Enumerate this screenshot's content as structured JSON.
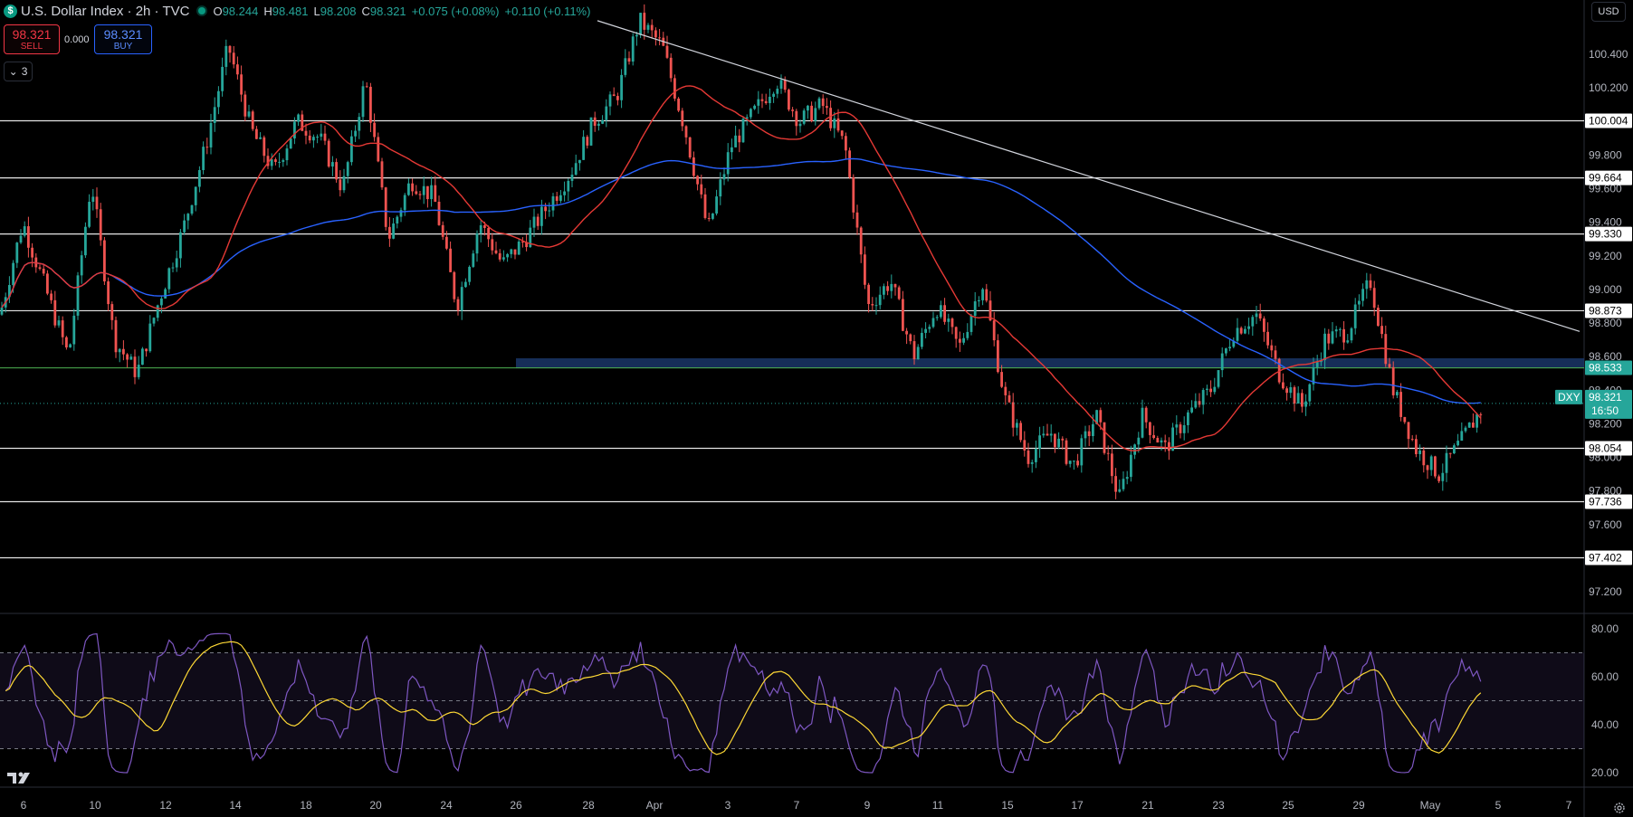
{
  "header": {
    "logo_glyph": "$",
    "title": "U.S. Dollar Index · 2h · TVC",
    "open_label": "O",
    "open": "98.244",
    "high_label": "H",
    "high": "98.481",
    "low_label": "L",
    "low": "98.208",
    "close_label": "C",
    "close": "98.321",
    "change": "+0.075 (+0.08%)",
    "change2": "+0.110 (+0.11%)"
  },
  "trade": {
    "sell_price": "98.321",
    "sell_label": "SELL",
    "spread": "0.000",
    "buy_price": "98.321",
    "buy_label": "BUY"
  },
  "indicators_toggle": {
    "glyph": "⌄",
    "count": "3"
  },
  "currency": "USD",
  "colors": {
    "up": "#26a69a",
    "down": "#ef5350",
    "ma_fast": "#e53935",
    "ma_slow": "#2962ff",
    "rsi": "#7e57c2",
    "rsi_ma": "#fdd835",
    "level": "#ffffff",
    "zone": "#1c3a6e",
    "price_tag": "#26a69a"
  },
  "chart_data": {
    "type": "candlestick",
    "symbol": "DXY",
    "interval": "2h",
    "ylim": [
      97.0,
      100.6
    ],
    "y_ticks": [
      "100.400",
      "100.200",
      "100.000",
      "99.800",
      "99.600",
      "99.400",
      "99.200",
      "99.000",
      "98.800",
      "98.600",
      "98.400",
      "98.200",
      "98.000",
      "97.800",
      "97.600",
      "97.400",
      "97.200"
    ],
    "x_ticks": [
      "6",
      "10",
      "12",
      "14",
      "18",
      "20",
      "24",
      "26",
      "28",
      "Apr",
      "3",
      "7",
      "9",
      "11",
      "15",
      "17",
      "21",
      "23",
      "25",
      "29",
      "May",
      "5",
      "7"
    ],
    "price_path": [
      [
        0,
        98.85
      ],
      [
        1,
        99.4
      ],
      [
        2,
        99.0
      ],
      [
        3,
        98.6
      ],
      [
        4,
        99.65
      ],
      [
        5,
        98.7
      ],
      [
        6,
        98.5
      ],
      [
        7,
        98.95
      ],
      [
        8,
        99.35
      ],
      [
        9,
        99.85
      ],
      [
        10,
        100.45
      ],
      [
        11,
        99.95
      ],
      [
        12,
        99.7
      ],
      [
        13,
        100.0
      ],
      [
        14,
        99.9
      ],
      [
        15,
        99.6
      ],
      [
        16,
        100.25
      ],
      [
        17,
        99.3
      ],
      [
        18,
        99.65
      ],
      [
        19,
        99.55
      ],
      [
        20,
        98.9
      ],
      [
        21,
        99.4
      ],
      [
        22,
        99.15
      ],
      [
        23,
        99.3
      ],
      [
        24,
        99.5
      ],
      [
        25,
        99.7
      ],
      [
        26,
        100.0
      ],
      [
        27,
        100.15
      ],
      [
        28,
        100.6
      ],
      [
        29,
        100.45
      ],
      [
        30,
        99.95
      ],
      [
        31,
        99.35
      ],
      [
        32,
        99.85
      ],
      [
        33,
        100.05
      ],
      [
        34,
        100.25
      ],
      [
        35,
        100.0
      ],
      [
        36,
        100.1
      ],
      [
        37,
        99.85
      ],
      [
        38,
        98.9
      ],
      [
        39,
        99.05
      ],
      [
        40,
        98.6
      ],
      [
        41,
        98.9
      ],
      [
        42,
        98.65
      ],
      [
        43,
        99.05
      ],
      [
        44,
        98.35
      ],
      [
        45,
        98.0
      ],
      [
        46,
        98.15
      ],
      [
        47,
        97.95
      ],
      [
        48,
        98.25
      ],
      [
        49,
        97.75
      ],
      [
        50,
        98.25
      ],
      [
        51,
        98.05
      ],
      [
        52,
        98.25
      ],
      [
        53,
        98.4
      ],
      [
        54,
        98.75
      ],
      [
        55,
        98.85
      ],
      [
        56,
        98.5
      ],
      [
        57,
        98.3
      ],
      [
        58,
        98.7
      ],
      [
        59,
        98.75
      ],
      [
        60,
        99.05
      ],
      [
        61,
        98.4
      ],
      [
        62,
        98.05
      ],
      [
        63,
        97.9
      ],
      [
        64,
        98.1
      ],
      [
        65,
        98.32
      ]
    ],
    "price_path_x_note": "",
    "levels": [
      {
        "label": "100.004",
        "value": 100.004
      },
      {
        "label": "99.664",
        "value": 99.664
      },
      {
        "label": "99.330",
        "value": 99.33
      },
      {
        "label": "98.873",
        "value": 98.873
      },
      {
        "label": "98.533",
        "value": 98.533
      },
      {
        "label": "98.054",
        "value": 98.054
      },
      {
        "label": "97.736",
        "value": 97.736
      },
      {
        "label": "97.402",
        "value": 97.402
      }
    ],
    "trendline": [
      [
        100.6
      ],
      [
        98.75
      ]
    ],
    "zone": [
      98.53,
      98.59
    ],
    "last_price": {
      "symbol": "DXY",
      "price": "98.321",
      "countdown": "16:50",
      "value": 98.321
    },
    "rsi": {
      "ylim": [
        15,
        85
      ],
      "y_ticks": [
        "80.00",
        "60.00",
        "40.00",
        "20.00"
      ],
      "bands": [
        30,
        50,
        70
      ]
    }
  }
}
